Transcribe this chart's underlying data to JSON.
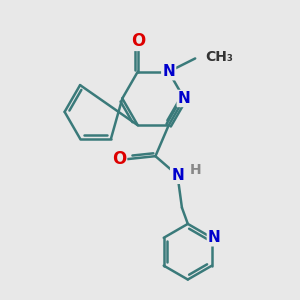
{
  "bg_color": "#e8e8e8",
  "bond_color": "#3a7a7a",
  "bond_width": 1.8,
  "atom_colors": {
    "O": "#dd0000",
    "N": "#0000cc",
    "H": "#888888"
  },
  "font_size": 11
}
